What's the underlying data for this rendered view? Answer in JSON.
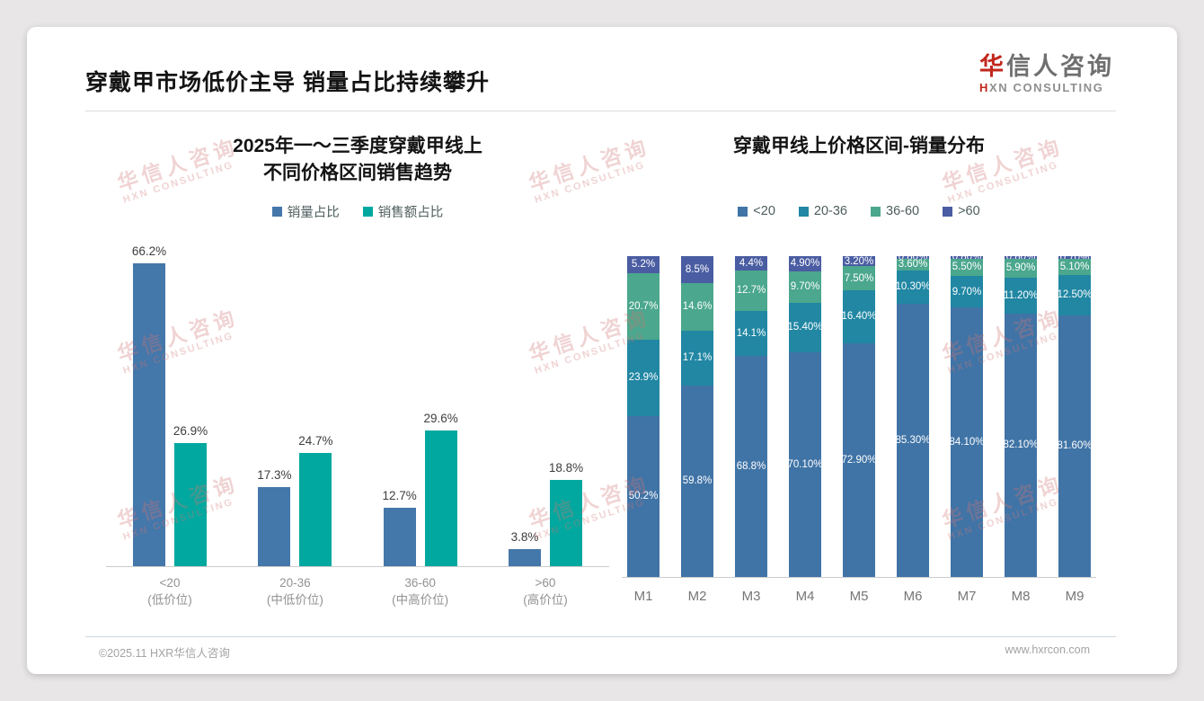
{
  "header": {
    "title": "穿戴甲市场低价主导 销量占比持续攀升"
  },
  "logo": {
    "cn_red": "华",
    "cn_rest": "信人咨询",
    "en_red": "H",
    "en_rest": "XN CONSULTING"
  },
  "watermark": {
    "line1": "华信人咨询",
    "line2": "HXN CONSULTING"
  },
  "footer": {
    "left": "©2025.11 HXR华信人咨询",
    "right": "www.hxrcon.com"
  },
  "chart_data": [
    {
      "type": "bar",
      "title_lines": [
        "2025年一～三季度穿戴甲线上",
        "不同价格区间销售趋势"
      ],
      "categories": [
        {
          "line1": "<20",
          "line2": "(低价位)"
        },
        {
          "line1": "20-36",
          "line2": "(中低价位)"
        },
        {
          "line1": "36-60",
          "line2": "(中高价位)"
        },
        {
          "line1": ">60",
          "line2": "(高价位)"
        }
      ],
      "series": [
        {
          "name": "销量占比",
          "color": "#4477aa",
          "values": [
            66.2,
            17.3,
            12.7,
            3.8
          ],
          "labels": [
            "66.2%",
            "17.3%",
            "12.7%",
            "3.8%"
          ]
        },
        {
          "name": "销售额占比",
          "color": "#00a89f",
          "values": [
            26.9,
            24.7,
            29.6,
            18.8
          ],
          "labels": [
            "26.9%",
            "24.7%",
            "29.6%",
            "18.8%"
          ]
        }
      ],
      "ylabel": "",
      "xlabel": "",
      "ylim": [
        0,
        70
      ],
      "grid": false,
      "legend_position": "top"
    },
    {
      "type": "bar",
      "stacked": true,
      "title_lines": [
        "穿戴甲线上价格区间-销量分布"
      ],
      "categories": [
        "M1",
        "M2",
        "M3",
        "M4",
        "M5",
        "M6",
        "M7",
        "M8",
        "M9"
      ],
      "series": [
        {
          "name": "<20",
          "color": "#4074a6",
          "values": [
            50.2,
            59.8,
            68.8,
            70.1,
            72.9,
            85.3,
            84.1,
            82.1,
            81.6
          ],
          "labels": [
            "50.2%",
            "59.8%",
            "68.8%",
            "70.10%",
            "72.90%",
            "85.30%",
            "84.10%",
            "82.10%",
            "81.60%"
          ]
        },
        {
          "name": "20-36",
          "color": "#2187a3",
          "values": [
            23.9,
            17.1,
            14.1,
            15.4,
            16.4,
            10.3,
            9.7,
            11.2,
            12.5
          ],
          "labels": [
            "23.9%",
            "17.1%",
            "14.1%",
            "15.40%",
            "16.40%",
            "10.30%",
            "9.70%",
            "11.20%",
            "12.50%"
          ]
        },
        {
          "name": "36-60",
          "color": "#4ba78d",
          "values": [
            20.7,
            14.6,
            12.7,
            9.7,
            7.5,
            3.6,
            5.5,
            5.9,
            5.1
          ],
          "labels": [
            "20.7%",
            "14.6%",
            "12.7%",
            "9.70%",
            "7.50%",
            "3.60%",
            "5.50%",
            "5.90%",
            "5.10%"
          ]
        },
        {
          "name": ">60",
          "color": "#4a5da2",
          "values": [
            5.2,
            8.5,
            4.4,
            4.9,
            3.2,
            0.8,
            0.8,
            0.8,
            0.7
          ],
          "labels": [
            "5.2%",
            "8.5%",
            "4.4%",
            "4.90%",
            "3.20%",
            "0.80%",
            "0.80%",
            "0.80%",
            "0.70%"
          ]
        }
      ],
      "ylabel": "",
      "xlabel": "",
      "ylim": [
        0,
        100
      ],
      "grid": false,
      "legend_position": "top"
    }
  ]
}
